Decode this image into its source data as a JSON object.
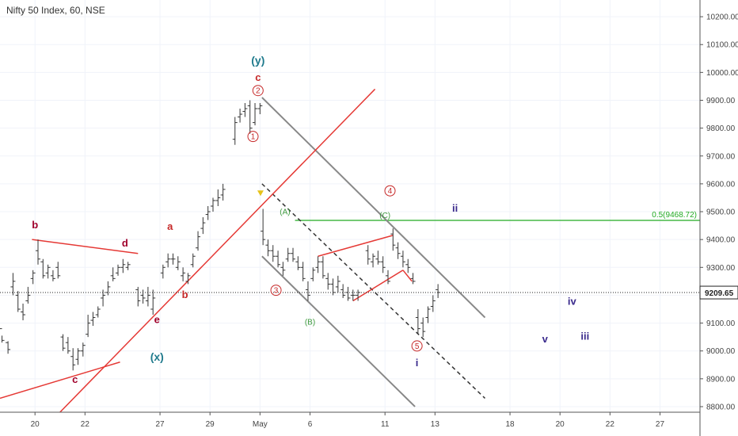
{
  "chart_data": {
    "type": "ohlc",
    "title": "Nifty 50 Index, 60, NSE",
    "ylim": [
      8780,
      10260
    ],
    "xlim": [
      0,
      70
    ],
    "y_ticks": [
      {
        "value": 10200,
        "label": "10200.00"
      },
      {
        "value": 10100,
        "label": "10100.00"
      },
      {
        "value": 10000,
        "label": "10000.00"
      },
      {
        "value": 9900,
        "label": "9900.00"
      },
      {
        "value": 9800,
        "label": "9800.00"
      },
      {
        "value": 9700,
        "label": "9700.00"
      },
      {
        "value": 9600,
        "label": "9600.00"
      },
      {
        "value": 9500,
        "label": "9500.00"
      },
      {
        "value": 9400,
        "label": "9400.00"
      },
      {
        "value": 9300,
        "label": "9300.00"
      },
      {
        "value": 9200,
        "label": "9200.00"
      },
      {
        "value": 9100,
        "label": "9100.00"
      },
      {
        "value": 9000,
        "label": "9000.00"
      },
      {
        "value": 8900,
        "label": "8900.00"
      },
      {
        "value": 8800,
        "label": "8800.00"
      }
    ],
    "x_ticks": [
      {
        "x": 3.5,
        "label": "20"
      },
      {
        "x": 8.5,
        "label": "22"
      },
      {
        "x": 16,
        "label": "27"
      },
      {
        "x": 21,
        "label": "29"
      },
      {
        "x": 26,
        "label": "May"
      },
      {
        "x": 31,
        "label": "6"
      },
      {
        "x": 38.5,
        "label": "11"
      },
      {
        "x": 43.5,
        "label": "13"
      },
      {
        "x": 51,
        "label": "18"
      },
      {
        "x": 56,
        "label": "20"
      },
      {
        "x": 61,
        "label": "22"
      },
      {
        "x": 66,
        "label": "27"
      }
    ],
    "bars": [
      [
        0.2,
        9080,
        9055,
        9030,
        9038
      ],
      [
        0.8,
        9030,
        9035,
        8990,
        9005
      ],
      [
        1.3,
        9230,
        9280,
        9200,
        9250
      ],
      [
        1.8,
        9200,
        9215,
        9140,
        9150
      ],
      [
        2.3,
        9140,
        9170,
        9110,
        9130
      ],
      [
        2.8,
        9180,
        9230,
        9170,
        9200
      ],
      [
        3.3,
        9260,
        9290,
        9240,
        9280
      ],
      [
        3.8,
        9360,
        9400,
        9310,
        9330
      ],
      [
        4.3,
        9320,
        9330,
        9260,
        9270
      ],
      [
        4.8,
        9280,
        9310,
        9260,
        9300
      ],
      [
        5.3,
        9270,
        9290,
        9250,
        9260
      ],
      [
        5.8,
        9300,
        9320,
        9260,
        9270
      ],
      [
        6.3,
        9050,
        9060,
        9000,
        9010
      ],
      [
        6.8,
        9030,
        9050,
        8990,
        9000
      ],
      [
        7.3,
        8980,
        9010,
        8930,
        8950
      ],
      [
        7.8,
        8970,
        9010,
        8950,
        9000
      ],
      [
        8.3,
        9000,
        9030,
        8980,
        9020
      ],
      [
        8.8,
        9060,
        9130,
        9050,
        9100
      ],
      [
        9.3,
        9110,
        9140,
        9090,
        9120
      ],
      [
        9.8,
        9130,
        9160,
        9120,
        9150
      ],
      [
        10.3,
        9190,
        9220,
        9160,
        9200
      ],
      [
        10.8,
        9210,
        9250,
        9200,
        9230
      ],
      [
        11.3,
        9270,
        9300,
        9250,
        9260
      ],
      [
        11.8,
        9280,
        9310,
        9270,
        9300
      ],
      [
        12.3,
        9300,
        9330,
        9280,
        9310
      ],
      [
        12.8,
        9300,
        9320,
        9290,
        9310
      ],
      [
        13.8,
        9220,
        9230,
        9160,
        9180
      ],
      [
        14.3,
        9200,
        9220,
        9170,
        9190
      ],
      [
        14.8,
        9180,
        9230,
        9160,
        9200
      ],
      [
        15.3,
        9150,
        9220,
        9130,
        9190
      ],
      [
        16.3,
        9280,
        9310,
        9260,
        9300
      ],
      [
        16.8,
        9320,
        9350,
        9300,
        9330
      ],
      [
        17.3,
        9330,
        9350,
        9310,
        9330
      ],
      [
        17.8,
        9300,
        9340,
        9290,
        9320
      ],
      [
        18.3,
        9270,
        9300,
        9250,
        9280
      ],
      [
        18.8,
        9250,
        9280,
        9240,
        9270
      ],
      [
        19.3,
        9310,
        9350,
        9300,
        9340
      ],
      [
        19.8,
        9370,
        9430,
        9360,
        9410
      ],
      [
        20.3,
        9440,
        9480,
        9420,
        9460
      ],
      [
        20.8,
        9490,
        9520,
        9470,
        9500
      ],
      [
        21.3,
        9520,
        9550,
        9500,
        9540
      ],
      [
        21.8,
        9540,
        9580,
        9520,
        9550
      ],
      [
        22.3,
        9560,
        9600,
        9540,
        9580
      ],
      [
        23.5,
        9760,
        9840,
        9740,
        9820
      ],
      [
        24.0,
        9840,
        9870,
        9820,
        9850
      ],
      [
        24.5,
        9860,
        9890,
        9840,
        9870
      ],
      [
        25.0,
        9880,
        9900,
        9780,
        9800
      ],
      [
        25.5,
        9820,
        9890,
        9810,
        9870
      ],
      [
        26.0,
        9870,
        9890,
        9850,
        9880
      ],
      [
        26.3,
        9430,
        9510,
        9380,
        9400
      ],
      [
        26.8,
        9380,
        9400,
        9340,
        9360
      ],
      [
        27.3,
        9360,
        9380,
        9320,
        9340
      ],
      [
        27.8,
        9340,
        9360,
        9300,
        9310
      ],
      [
        28.3,
        9300,
        9320,
        9270,
        9290
      ],
      [
        28.8,
        9330,
        9370,
        9320,
        9350
      ],
      [
        29.3,
        9350,
        9370,
        9320,
        9330
      ],
      [
        29.8,
        9320,
        9340,
        9290,
        9300
      ],
      [
        30.3,
        9300,
        9320,
        9250,
        9260
      ],
      [
        30.8,
        9220,
        9250,
        9180,
        9200
      ],
      [
        31.3,
        9260,
        9300,
        9250,
        9290
      ],
      [
        31.8,
        9300,
        9340,
        9280,
        9320
      ],
      [
        32.3,
        9320,
        9340,
        9260,
        9270
      ],
      [
        32.8,
        9260,
        9280,
        9220,
        9240
      ],
      [
        33.3,
        9240,
        9260,
        9200,
        9210
      ],
      [
        33.8,
        9230,
        9270,
        9210,
        9250
      ],
      [
        34.3,
        9220,
        9240,
        9190,
        9200
      ],
      [
        34.8,
        9210,
        9230,
        9180,
        9190
      ],
      [
        35.3,
        9200,
        9220,
        9180,
        9200
      ],
      [
        35.8,
        9200,
        9220,
        9180,
        9210
      ],
      [
        36.8,
        9360,
        9380,
        9310,
        9330
      ],
      [
        37.3,
        9320,
        9350,
        9300,
        9340
      ],
      [
        37.8,
        9330,
        9360,
        9310,
        9320
      ],
      [
        38.3,
        9320,
        9340,
        9280,
        9300
      ],
      [
        38.8,
        9270,
        9290,
        9240,
        9250
      ],
      [
        39.3,
        9420,
        9440,
        9360,
        9380
      ],
      [
        39.8,
        9370,
        9390,
        9330,
        9350
      ],
      [
        40.3,
        9340,
        9360,
        9300,
        9320
      ],
      [
        40.8,
        9310,
        9330,
        9280,
        9300
      ],
      [
        41.3,
        9260,
        9280,
        9240,
        9250
      ],
      [
        41.8,
        9120,
        9150,
        9060,
        9080
      ],
      [
        42.3,
        9100,
        9120,
        9050,
        9070
      ],
      [
        42.8,
        9120,
        9160,
        9100,
        9150
      ],
      [
        43.3,
        9160,
        9200,
        9140,
        9180
      ],
      [
        43.8,
        9220,
        9240,
        9190,
        9210
      ]
    ],
    "last_price": {
      "value": 9209.65,
      "label": "9209.65"
    },
    "horizontal_levels": [
      {
        "value": 9468.72,
        "label": "0.5(9468.72)",
        "color": "#22aa22"
      }
    ],
    "colors": {
      "channel": "#777777",
      "trend": "#e53935",
      "fib": "#22aa22",
      "bars": "#333333"
    },
    "trendlines": [
      {
        "points": [
          [
            26.2,
            9910
          ],
          [
            48.5,
            9120
          ]
        ],
        "color": "#888888",
        "style": "solid"
      },
      {
        "points": [
          [
            26.2,
            9340
          ],
          [
            41.5,
            8800
          ]
        ],
        "color": "#888888",
        "style": "solid"
      },
      {
        "points": [
          [
            26.2,
            9600
          ],
          [
            48.5,
            8830
          ]
        ],
        "color": "#333333",
        "style": "dashed"
      },
      {
        "points": [
          [
            6,
            8780
          ],
          [
            37.5,
            9940
          ]
        ],
        "color": "#e53935",
        "style": "solid"
      },
      {
        "points": [
          [
            0,
            8830
          ],
          [
            12,
            8960
          ]
        ],
        "color": "#e53935",
        "style": "solid"
      },
      {
        "points": [
          [
            3.2,
            9400
          ],
          [
            13.8,
            9350
          ]
        ],
        "color": "#e53935",
        "style": "solid"
      },
      {
        "points": [
          [
            31.8,
            9340
          ],
          [
            39.3,
            9415
          ]
        ],
        "color": "#e53935",
        "style": "solid"
      },
      {
        "points": [
          [
            35.3,
            9180
          ],
          [
            40.3,
            9290
          ]
        ],
        "color": "#e53935",
        "style": "solid"
      },
      {
        "points": [
          [
            40.3,
            9290
          ],
          [
            41.2,
            9250
          ]
        ],
        "color": "#e53935",
        "style": "solid"
      }
    ],
    "wave_labels": [
      {
        "text": "(y)",
        "x": 25.8,
        "y": 10030,
        "color": "#1f7a8c",
        "size": 14,
        "weight": "bold"
      },
      {
        "text": "c",
        "x": 25.8,
        "y": 9970,
        "color": "#c62828",
        "size": 13,
        "weight": "bold"
      },
      {
        "text": "2",
        "x": 25.8,
        "y": 9925,
        "color": "#c62828",
        "size": 10,
        "circle": true
      },
      {
        "text": "1",
        "x": 25.3,
        "y": 9760,
        "color": "#c62828",
        "size": 10,
        "circle": true
      },
      {
        "text": "b",
        "x": 3.5,
        "y": 9440,
        "color": "#a0002a",
        "size": 13,
        "weight": "bold"
      },
      {
        "text": "d",
        "x": 12.5,
        "y": 9375,
        "color": "#a0002a",
        "size": 13,
        "weight": "bold"
      },
      {
        "text": "a",
        "x": 17,
        "y": 9435,
        "color": "#c62828",
        "size": 13,
        "weight": "bold"
      },
      {
        "text": "b",
        "x": 18.5,
        "y": 9190,
        "color": "#c62828",
        "size": 13,
        "weight": "bold"
      },
      {
        "text": "e",
        "x": 15.7,
        "y": 9100,
        "color": "#a0002a",
        "size": 13,
        "weight": "bold"
      },
      {
        "text": "(x)",
        "x": 15.7,
        "y": 8965,
        "color": "#1f7a8c",
        "size": 14,
        "weight": "bold"
      },
      {
        "text": "c",
        "x": 7.5,
        "y": 8885,
        "color": "#a0002a",
        "size": 13,
        "weight": "bold"
      },
      {
        "text": "4",
        "x": 39,
        "y": 9565,
        "color": "#c62828",
        "size": 10,
        "circle": true
      },
      {
        "text": "(A)",
        "x": 28.5,
        "y": 9490,
        "color": "#3d9a3d",
        "size": 10
      },
      {
        "text": "(C)",
        "x": 38.5,
        "y": 9478,
        "color": "#3d9a3d",
        "size": 10
      },
      {
        "text": "(B)",
        "x": 31,
        "y": 9095,
        "color": "#3d9a3d",
        "size": 10
      },
      {
        "text": "3",
        "x": 27.6,
        "y": 9208,
        "color": "#c62828",
        "size": 10,
        "circle": true
      },
      {
        "text": "5",
        "x": 41.7,
        "y": 9008,
        "color": "#c62828",
        "size": 10,
        "circle": true
      },
      {
        "text": "i",
        "x": 41.7,
        "y": 8945,
        "color": "#3a2a8c",
        "size": 13,
        "weight": "bold"
      },
      {
        "text": "ii",
        "x": 45.5,
        "y": 9500,
        "color": "#3a2a8c",
        "size": 13,
        "weight": "bold"
      },
      {
        "text": "iv",
        "x": 57.2,
        "y": 9165,
        "color": "#3a2a8c",
        "size": 13,
        "weight": "bold"
      },
      {
        "text": "v",
        "x": 54.5,
        "y": 9030,
        "color": "#3a2a8c",
        "size": 13,
        "weight": "bold"
      },
      {
        "text": "iii",
        "x": 58.5,
        "y": 9040,
        "color": "#3a2a8c",
        "size": 13,
        "weight": "bold"
      }
    ],
    "markers": [
      {
        "shape": "triangle-down",
        "x": 26.05,
        "y": 9565,
        "color": "#e6c21a"
      }
    ]
  }
}
